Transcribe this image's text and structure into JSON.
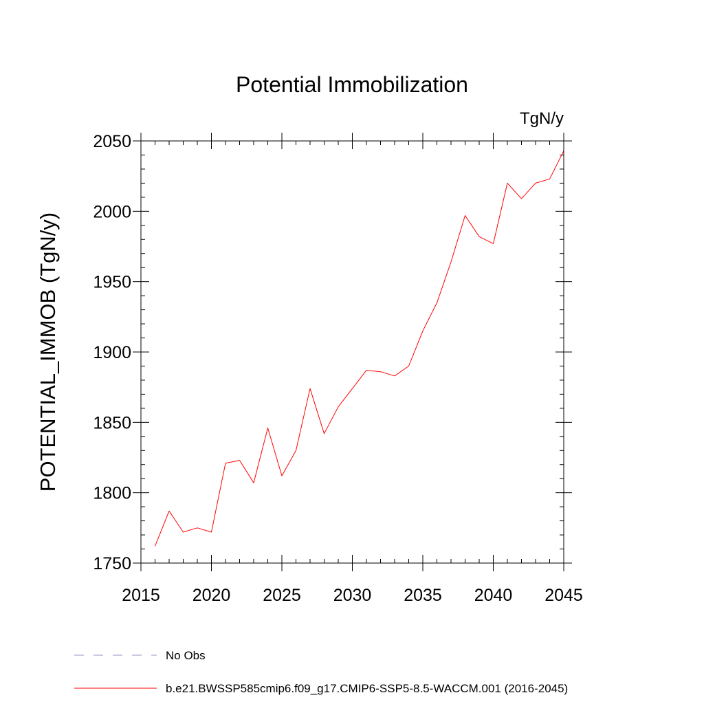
{
  "chart_data": {
    "type": "line",
    "title": "Potential Immobilization",
    "units": "TgN/y",
    "xlabel": "",
    "ylabel": "POTENTIAL_IMMOB  (TgN/y)",
    "xlim": [
      2015,
      2045
    ],
    "ylim": [
      1750,
      2050
    ],
    "xticks": [
      2015,
      2020,
      2025,
      2030,
      2035,
      2040,
      2045
    ],
    "xtick_labels": [
      "2015",
      "2020",
      "2025",
      "2030",
      "2035",
      "2040",
      "2045"
    ],
    "yticks": [
      1750,
      1800,
      1850,
      1900,
      1950,
      2000,
      2050
    ],
    "ytick_labels": [
      "1750",
      "1800",
      "1850",
      "1900",
      "1950",
      "2000",
      "2050"
    ],
    "grid": false,
    "legend_position": "bottom",
    "series": [
      {
        "name": "b.e21.BWSSP585cmip6.f09_g17.CMIP6-SSP5-8.5-WACCM.001 (2016-2045)",
        "color": "#ff0000",
        "style": "solid",
        "x": [
          2016,
          2017,
          2018,
          2019,
          2020,
          2021,
          2022,
          2023,
          2024,
          2025,
          2026,
          2027,
          2028,
          2029,
          2030,
          2031,
          2032,
          2033,
          2034,
          2035,
          2036,
          2037,
          2038,
          2039,
          2040,
          2041,
          2042,
          2043,
          2044,
          2045
        ],
        "y": [
          1762,
          1787,
          1772,
          1775,
          1772,
          1821,
          1823,
          1807,
          1846,
          1812,
          1830,
          1874,
          1842,
          1861,
          1874,
          1887,
          1886,
          1883,
          1890,
          1915,
          1935,
          1964,
          1997,
          1982,
          1977,
          2020,
          2009,
          2020,
          2023,
          2043
        ]
      },
      {
        "name": "No Obs",
        "color": "#9a90c4",
        "style": "dashed",
        "x": [],
        "y": []
      }
    ]
  }
}
